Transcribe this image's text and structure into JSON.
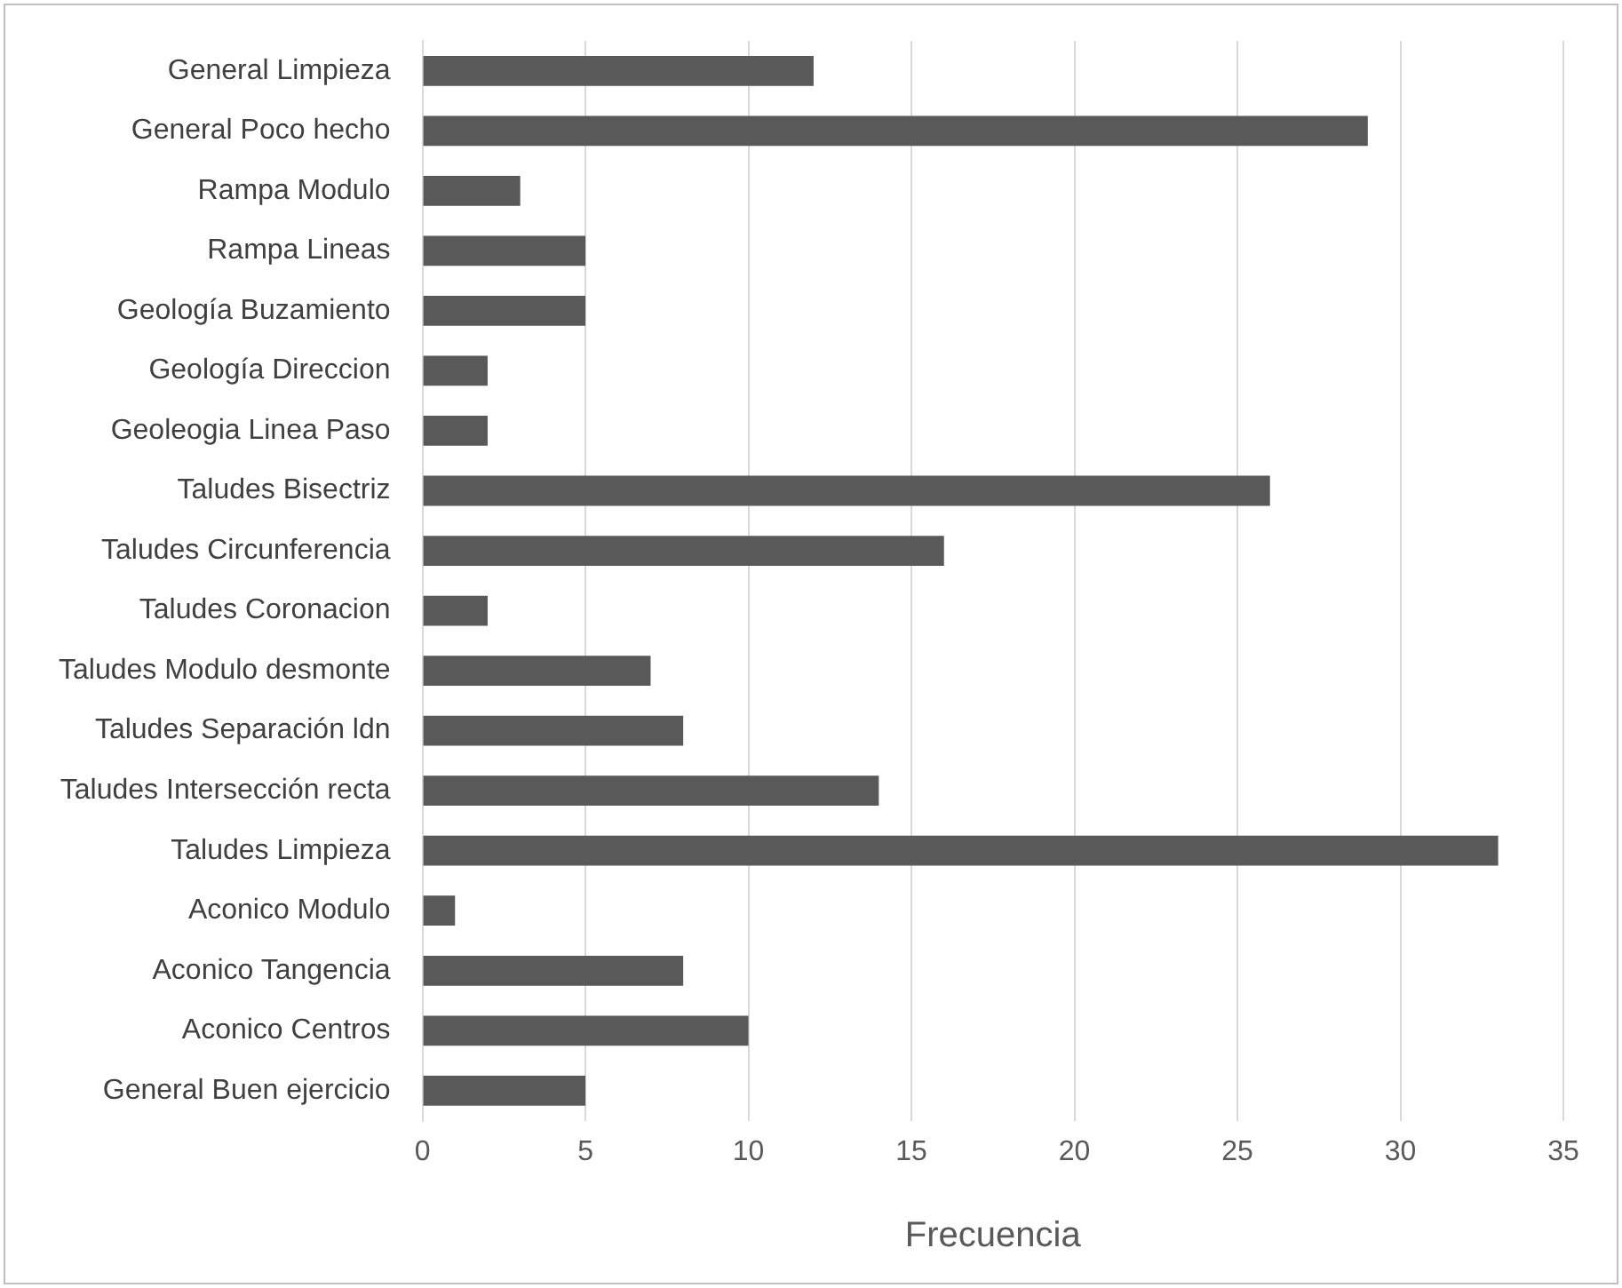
{
  "chart_data": {
    "type": "bar",
    "orientation": "horizontal",
    "xlabel": "Frecuencia",
    "categories": [
      "General Limpieza",
      "General Poco hecho",
      "Rampa Modulo",
      "Rampa Lineas",
      "Geología Buzamiento",
      "Geología Direccion",
      "Geoleogia Linea Paso",
      "Taludes Bisectriz",
      "Taludes Circunferencia",
      "Taludes Coronacion",
      "Taludes Modulo desmonte",
      "Taludes Separación ldn",
      "Taludes Intersección recta",
      "Taludes Limpieza",
      "Aconico Modulo",
      "Aconico Tangencia",
      "Aconico Centros",
      "General Buen ejercicio"
    ],
    "values": [
      12,
      29,
      3,
      5,
      5,
      2,
      2,
      26,
      16,
      2,
      7,
      8,
      14,
      33,
      1,
      8,
      10,
      5
    ],
    "color": "#595959",
    "xlim": [
      0,
      35
    ],
    "xticks": [
      0,
      5,
      10,
      15,
      20,
      25,
      30,
      35
    ],
    "grid": "x",
    "legend": false
  }
}
